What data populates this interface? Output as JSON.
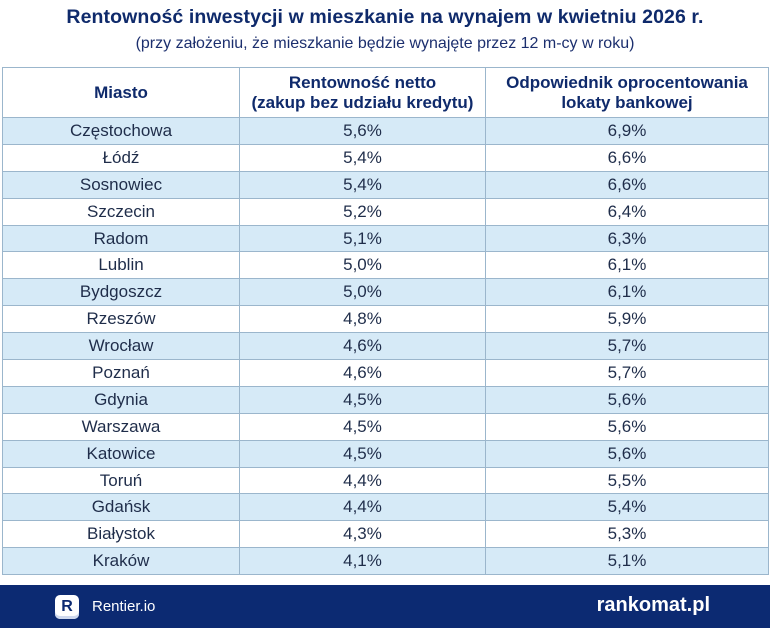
{
  "header": {
    "title": "Rentowność inwestycji w mieszkanie na wynajem w kwietniu 2026 r.",
    "subtitle": "(przy założeniu, że mieszkanie będzie wynajęte przez 12 m-cy w roku)"
  },
  "table": {
    "columns": [
      {
        "lines": [
          "Miasto"
        ]
      },
      {
        "lines": [
          "Rentowność netto",
          "(zakup bez udziału kredytu)"
        ]
      },
      {
        "lines": [
          "Odpowiednik oprocentowania",
          "lokaty bankowej"
        ]
      }
    ],
    "rows": [
      [
        "Częstochowa",
        "5,6%",
        "6,9%"
      ],
      [
        "Łódź",
        "5,4%",
        "6,6%"
      ],
      [
        "Sosnowiec",
        "5,4%",
        "6,6%"
      ],
      [
        "Szczecin",
        "5,2%",
        "6,4%"
      ],
      [
        "Radom",
        "5,1%",
        "6,3%"
      ],
      [
        "Lublin",
        "5,0%",
        "6,1%"
      ],
      [
        "Bydgoszcz",
        "5,0%",
        "6,1%"
      ],
      [
        "Rzeszów",
        "4,8%",
        "5,9%"
      ],
      [
        "Wrocław",
        "4,6%",
        "5,7%"
      ],
      [
        "Poznań",
        "4,6%",
        "5,7%"
      ],
      [
        "Gdynia",
        "4,5%",
        "5,6%"
      ],
      [
        "Warszawa",
        "4,5%",
        "5,6%"
      ],
      [
        "Katowice",
        "4,5%",
        "5,6%"
      ],
      [
        "Toruń",
        "4,4%",
        "5,5%"
      ],
      [
        "Gdańsk",
        "4,4%",
        "5,4%"
      ],
      [
        "Białystok",
        "4,3%",
        "5,3%"
      ],
      [
        "Kraków",
        "4,1%",
        "5,1%"
      ]
    ]
  },
  "footer": {
    "brand_logo_letter": "R",
    "brand_name": "Rentier.io",
    "partner_logo": "rankomat.pl"
  },
  "colors": {
    "title": "#0f2a6b",
    "row_stripe": "#d6eaf7",
    "footer_bg": "#0c2a72"
  }
}
